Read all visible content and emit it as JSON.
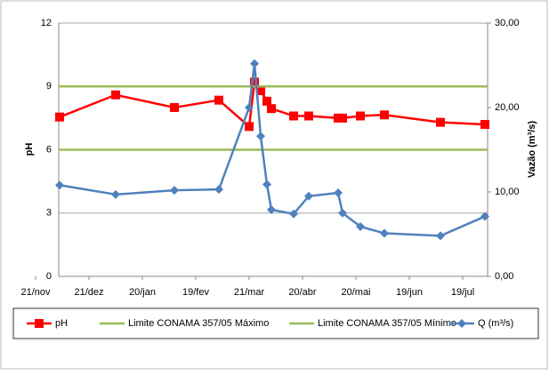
{
  "chart_data": {
    "type": "line",
    "x": [
      13.5,
      45,
      78,
      103,
      120,
      123,
      126.5,
      130,
      132.5,
      145,
      153.5,
      170,
      172.5,
      182.5,
      196,
      227.5,
      252.5
    ],
    "xlim": [
      13,
      254
    ],
    "xticks": [
      {
        "value": 0,
        "label": "21/nov"
      },
      {
        "value": 30,
        "label": "21/dez"
      },
      {
        "value": 60,
        "label": "20/jan"
      },
      {
        "value": 90,
        "label": "19/fev"
      },
      {
        "value": 120,
        "label": "21/mar"
      },
      {
        "value": 150,
        "label": "20/abr"
      },
      {
        "value": 180,
        "label": "20/mai"
      },
      {
        "value": 210,
        "label": "19/jun"
      },
      {
        "value": 240,
        "label": "19/jul"
      }
    ],
    "ylabel": "pH",
    "ylim": [
      0,
      12
    ],
    "yticks": [
      0,
      3,
      6,
      9,
      12
    ],
    "y2label": "Vazão (m³/s)",
    "y2lim": [
      0,
      30
    ],
    "y2ticks": [
      {
        "value": 0,
        "label": "0,00"
      },
      {
        "value": 10,
        "label": "10,00"
      },
      {
        "value": 20,
        "label": "20,00"
      },
      {
        "value": 30,
        "label": "30,00"
      }
    ],
    "grid": true,
    "series": [
      {
        "name": "pH",
        "color": "#ff0000",
        "marker": "square",
        "values": [
          7.55,
          8.6,
          8.0,
          8.35,
          7.1,
          9.2,
          8.8,
          8.3,
          7.95,
          7.6,
          7.6,
          7.5,
          7.5,
          7.6,
          7.65,
          7.3,
          7.2
        ]
      },
      {
        "name": "Limite CONAMA 357/05 Máximo",
        "color": "#9bbb59",
        "hline": 9
      },
      {
        "name": "Limite CONAMA 357/05 Mínimo",
        "color": "#9bbb59",
        "hline": 6
      },
      {
        "name": "Q (m³/s)",
        "color": "#4f81bd",
        "marker": "diamond",
        "axis": "y2",
        "values": [
          10.8,
          9.7,
          10.2,
          10.3,
          20.0,
          25.2,
          16.6,
          10.9,
          7.9,
          7.4,
          9.5,
          9.9,
          7.5,
          5.9,
          5.1,
          4.8,
          7.1
        ]
      }
    ]
  }
}
